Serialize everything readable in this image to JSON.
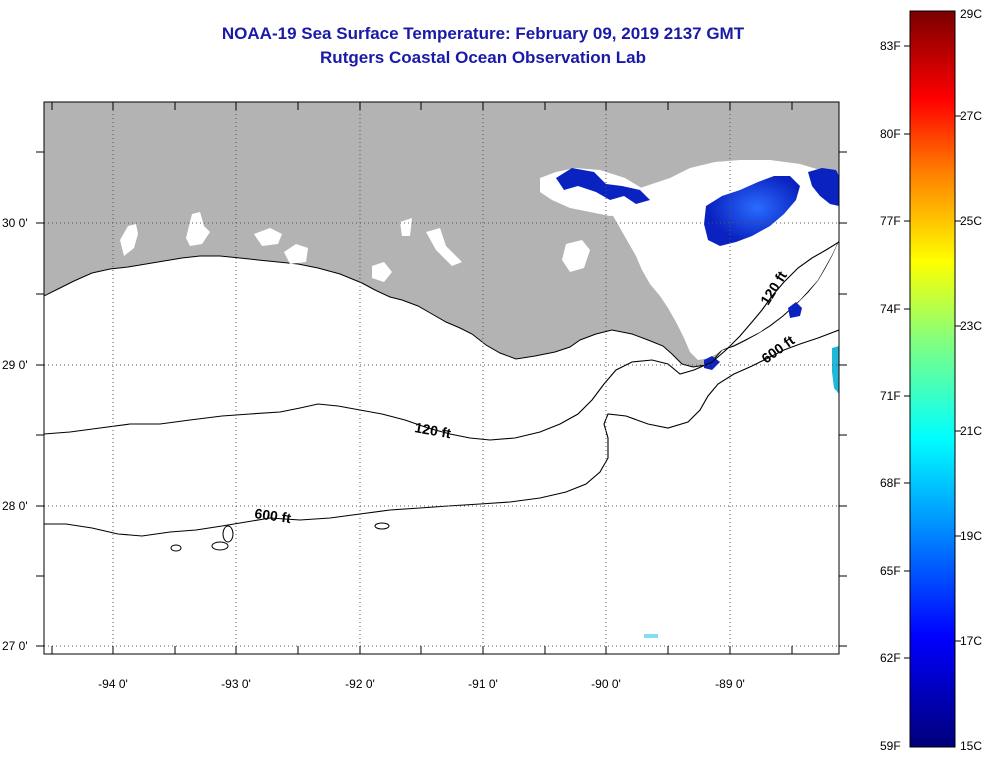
{
  "header": {
    "title": "NOAA-19 Sea Surface Temperature:  February 09, 2019 2137 GMT",
    "subtitle": "Rutgers Coastal Ocean Observation Lab"
  },
  "map": {
    "longitude_labels": [
      "-94 0'",
      "-93 0'",
      "-92 0'",
      "-91 0'",
      "-90 0'",
      "-89 0'"
    ],
    "latitude_labels": [
      "30 0'",
      "29 0'",
      "28 0'",
      "27 0'"
    ],
    "contour_labels": [
      "120 ft",
      "120 ft",
      "600 ft",
      "600 ft"
    ],
    "colors": {
      "land": "#b3b3b3",
      "water_no_data": "#ffffff",
      "cold_water": "#0a22c0"
    }
  },
  "colorbar": {
    "fahrenheit_labels": [
      "83F",
      "80F",
      "77F",
      "74F",
      "71F",
      "68F",
      "65F",
      "62F",
      "59F"
    ],
    "celsius_labels": [
      "29C",
      "27C",
      "25C",
      "23C",
      "21C",
      "19C",
      "17C",
      "15C"
    ],
    "colors": [
      "#00007a",
      "#0000ff",
      "#0090ff",
      "#00ffff",
      "#80ff80",
      "#ffff00",
      "#ff8000",
      "#ff0000",
      "#7a0000"
    ]
  }
}
